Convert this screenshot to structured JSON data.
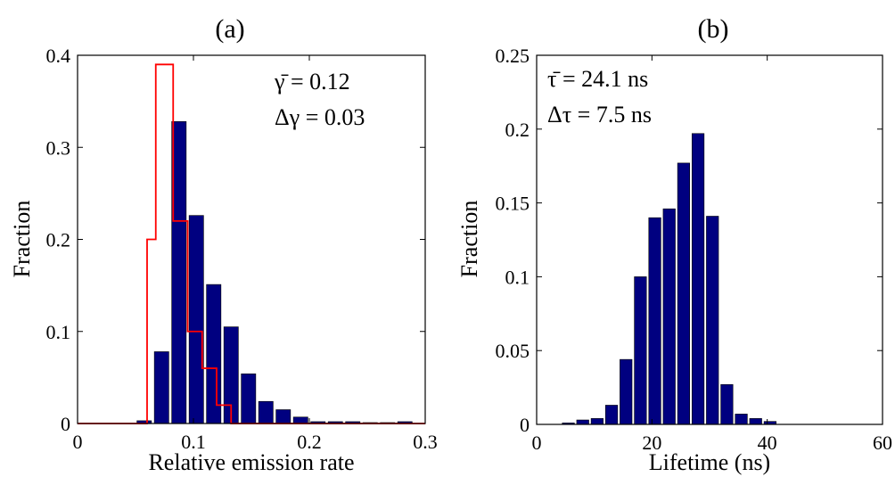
{
  "chart_data": [
    {
      "type": "bar",
      "panel_label": "(a)",
      "xlabel": "Relative emission rate",
      "ylabel": "Fraction",
      "xlim": [
        0,
        0.3
      ],
      "ylim": [
        0,
        0.4
      ],
      "xticks": [
        0,
        0.1,
        0.2,
        0.3
      ],
      "xtick_labels": [
        "0",
        "0.1",
        "0.2",
        "0.3"
      ],
      "yticks": [
        0,
        0.1,
        0.2,
        0.3,
        0.4
      ],
      "ytick_labels": [
        "0",
        "0.1",
        "0.2",
        "0.3",
        "0.4"
      ],
      "bar_width": 0.0125,
      "bars": {
        "x": [
          0.0575,
          0.0725,
          0.0875,
          0.1025,
          0.1175,
          0.1325,
          0.1475,
          0.1625,
          0.1775,
          0.1925,
          0.2075,
          0.2225,
          0.2375,
          0.2525,
          0.2675,
          0.2825
        ],
        "values": [
          0.003,
          0.078,
          0.328,
          0.226,
          0.151,
          0.105,
          0.054,
          0.024,
          0.015,
          0.007,
          0.002,
          0.002,
          0.002,
          0.001,
          0.001,
          0.002
        ],
        "color": "#000080"
      },
      "step_series": {
        "color": "#ff0000",
        "x": [
          0,
          0.06,
          0.06,
          0.0675,
          0.0675,
          0.0825,
          0.0825,
          0.095,
          0.095,
          0.1075,
          0.1075,
          0.12,
          0.12,
          0.1325,
          0.1325,
          0.3
        ],
        "y": [
          0,
          0,
          0.2,
          0.2,
          0.39,
          0.39,
          0.22,
          0.22,
          0.1,
          0.1,
          0.06,
          0.06,
          0.02,
          0.02,
          0,
          0
        ]
      },
      "annotations": [
        "γ̄ = 0.12",
        "Δγ = 0.03"
      ]
    },
    {
      "type": "bar",
      "panel_label": "(b)",
      "xlabel": "Lifetime (ns)",
      "ylabel": "Fraction",
      "xlim": [
        0,
        60
      ],
      "ylim": [
        0,
        0.25
      ],
      "xticks": [
        0,
        20,
        40,
        60
      ],
      "xtick_labels": [
        "0",
        "20",
        "40",
        "60"
      ],
      "yticks": [
        0,
        0.05,
        0.1,
        0.15,
        0.2,
        0.25
      ],
      "ytick_labels": [
        "0",
        "0.05",
        "0.1",
        "0.15",
        "0.2",
        "0.25"
      ],
      "bar_width": 2.1,
      "bars": {
        "x": [
          5.5,
          8,
          10.5,
          13,
          15.5,
          18,
          20.5,
          23,
          25.5,
          28,
          30.5,
          33,
          35.5,
          38,
          40.5
        ],
        "values": [
          0.001,
          0.003,
          0.004,
          0.013,
          0.044,
          0.1,
          0.14,
          0.146,
          0.177,
          0.197,
          0.141,
          0.027,
          0.007,
          0.004,
          0.002
        ],
        "color": "#000080"
      },
      "annotations": [
        "τ̄ = 24.1 ns",
        "Δτ = 7.5 ns"
      ]
    }
  ]
}
